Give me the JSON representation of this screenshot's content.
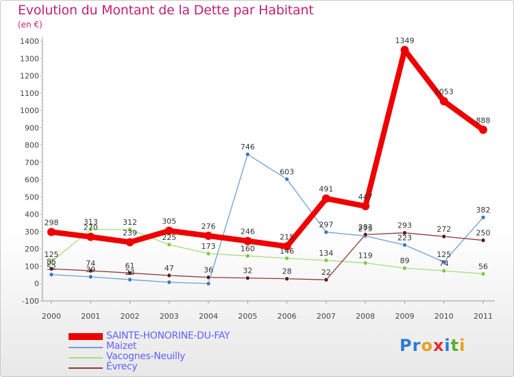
{
  "title": "Evolution du Montant de la Dette par Habitant",
  "unit": "(en €)",
  "brand": {
    "letters": [
      "P",
      "r",
      "o",
      "x",
      "i",
      "t",
      "i"
    ],
    "colors": [
      "#2b7bd6",
      "#2b7bd6",
      "#e8a020",
      "#e0302a",
      "#2b7bd6",
      "#5ab02e",
      "#e8a020"
    ]
  },
  "chart_data": {
    "type": "line",
    "title": "Evolution du Montant de la Dette par Habitant",
    "ylabel": "(en €)",
    "xlabel": "",
    "x": [
      "2000",
      "2001",
      "2002",
      "2003",
      "2004",
      "2005",
      "2006",
      "2007",
      "2008",
      "2009",
      "2010",
      "2011"
    ],
    "ylim": [
      -100,
      1400
    ],
    "yticks": [
      -100,
      0,
      100,
      200,
      300,
      400,
      500,
      600,
      700,
      800,
      900,
      1000,
      1100,
      1200,
      1300,
      1400
    ],
    "grid": false,
    "legend_position": "bottom-left",
    "series": [
      {
        "name": "SAINTE-HONORINE-DU-FAY",
        "color": "#ee0000",
        "width": 8,
        "radius": 6,
        "dot": "#ee0000",
        "values": [
          298,
          270,
          239,
          305,
          276,
          246,
          215,
          491,
          447,
          1349,
          1053,
          888
        ]
      },
      {
        "name": "Maizet",
        "color": "#6a9fd6",
        "width": 1.3,
        "radius": 3,
        "dot": "#3a78c0",
        "values": [
          52,
          39,
          23,
          8,
          0,
          746,
          603,
          297,
          275,
          223,
          125,
          382
        ]
      },
      {
        "name": "Vacognes-Neuilly",
        "color": "#a6dd7c",
        "width": 1.3,
        "radius": 3,
        "dot": "#7ac943",
        "values": [
          125,
          313,
          312,
          225,
          173,
          160,
          146,
          134,
          119,
          89,
          74,
          56
        ]
      },
      {
        "name": "Évrecy",
        "color": "#8a3a3a",
        "width": 1.3,
        "radius": 3,
        "dot": "#5c1a1a",
        "values": [
          85,
          74,
          61,
          47,
          36,
          32,
          28,
          22,
          283,
          293,
          272,
          250
        ]
      }
    ],
    "labels": [
      {
        "series": 0,
        "i": 0,
        "text": "298"
      },
      {
        "series": 0,
        "i": 1,
        "text": "270"
      },
      {
        "series": 0,
        "i": 2,
        "text": "239"
      },
      {
        "series": 0,
        "i": 3,
        "text": "305"
      },
      {
        "series": 0,
        "i": 4,
        "text": "276"
      },
      {
        "series": 0,
        "i": 5,
        "text": "246"
      },
      {
        "series": 0,
        "i": 6,
        "text": "215"
      },
      {
        "series": 0,
        "i": 7,
        "text": "491"
      },
      {
        "series": 0,
        "i": 8,
        "text": "447"
      },
      {
        "series": 0,
        "i": 9,
        "text": "1349"
      },
      {
        "series": 0,
        "i": 10,
        "text": "1053"
      },
      {
        "series": 0,
        "i": 11,
        "text": "888"
      },
      {
        "series": 1,
        "i": 0,
        "text": "52"
      },
      {
        "series": 1,
        "i": 1,
        "text": "39"
      },
      {
        "series": 1,
        "i": 2,
        "text": "23"
      },
      {
        "series": 1,
        "i": 5,
        "text": "746"
      },
      {
        "series": 1,
        "i": 6,
        "text": "603"
      },
      {
        "series": 1,
        "i": 7,
        "text": "297"
      },
      {
        "series": 1,
        "i": 8,
        "text": "275"
      },
      {
        "series": 1,
        "i": 9,
        "text": "223"
      },
      {
        "series": 1,
        "i": 10,
        "text": "125"
      },
      {
        "series": 1,
        "i": 11,
        "text": "382"
      },
      {
        "series": 2,
        "i": 0,
        "text": "125"
      },
      {
        "series": 2,
        "i": 1,
        "text": "313"
      },
      {
        "series": 2,
        "i": 2,
        "text": "312"
      },
      {
        "series": 2,
        "i": 3,
        "text": "225"
      },
      {
        "series": 2,
        "i": 4,
        "text": "173"
      },
      {
        "series": 2,
        "i": 5,
        "text": "160"
      },
      {
        "series": 2,
        "i": 6,
        "text": "146"
      },
      {
        "series": 2,
        "i": 7,
        "text": "134"
      },
      {
        "series": 2,
        "i": 8,
        "text": "119"
      },
      {
        "series": 2,
        "i": 9,
        "text": "89"
      },
      {
        "series": 2,
        "i": 10,
        "text": "74"
      },
      {
        "series": 2,
        "i": 11,
        "text": "56"
      },
      {
        "series": 3,
        "i": 0,
        "text": "85"
      },
      {
        "series": 3,
        "i": 1,
        "text": "74"
      },
      {
        "series": 3,
        "i": 2,
        "text": "61"
      },
      {
        "series": 3,
        "i": 3,
        "text": "47"
      },
      {
        "series": 3,
        "i": 4,
        "text": "36"
      },
      {
        "series": 3,
        "i": 5,
        "text": "32"
      },
      {
        "series": 3,
        "i": 6,
        "text": "28"
      },
      {
        "series": 3,
        "i": 7,
        "text": "22"
      },
      {
        "series": 3,
        "i": 8,
        "text": "283"
      },
      {
        "series": 3,
        "i": 9,
        "text": "293"
      },
      {
        "series": 3,
        "i": 10,
        "text": "272"
      },
      {
        "series": 3,
        "i": 11,
        "text": "250"
      }
    ]
  }
}
